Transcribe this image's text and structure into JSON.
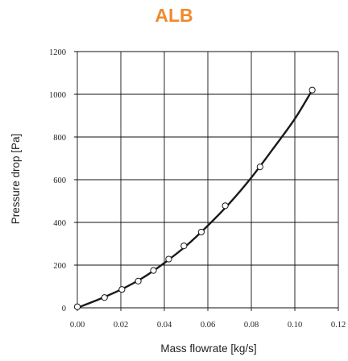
{
  "chart_data": {
    "type": "scatter",
    "title": "ALB",
    "xlabel": "Mass flowrate [kg/s]",
    "ylabel": "Pressure drop [Pa]",
    "xlim": [
      0,
      0.12
    ],
    "ylim": [
      0,
      1200
    ],
    "x_ticks": [
      "0.00",
      "0.02",
      "0.04",
      "0.06",
      "0.08",
      "0.10",
      "0.12"
    ],
    "y_ticks": [
      "0",
      "200",
      "400",
      "600",
      "800",
      "1000",
      "1200"
    ],
    "grid": true,
    "series": [
      {
        "kind": "measured points",
        "marker": "open-circle",
        "x": [
          0.0,
          0.0125,
          0.0205,
          0.028,
          0.035,
          0.042,
          0.049,
          0.057,
          0.068,
          0.084,
          0.108
        ],
        "y": [
          5,
          48,
          86,
          125,
          175,
          228,
          290,
          355,
          478,
          660,
          1020
        ]
      },
      {
        "kind": "fitted curve",
        "style": "line",
        "x": [
          0.0,
          0.01,
          0.02,
          0.03,
          0.04,
          0.05,
          0.06,
          0.07,
          0.08,
          0.09,
          0.1,
          0.108
        ],
        "y": [
          0,
          40,
          85,
          140,
          210,
          290,
          385,
          490,
          610,
          745,
          885,
          1020
        ]
      }
    ],
    "colors": {
      "title": "#f08a2c",
      "line": "#1a1a1a",
      "grid": "#111111",
      "marker_fill": "#ffffff"
    }
  }
}
